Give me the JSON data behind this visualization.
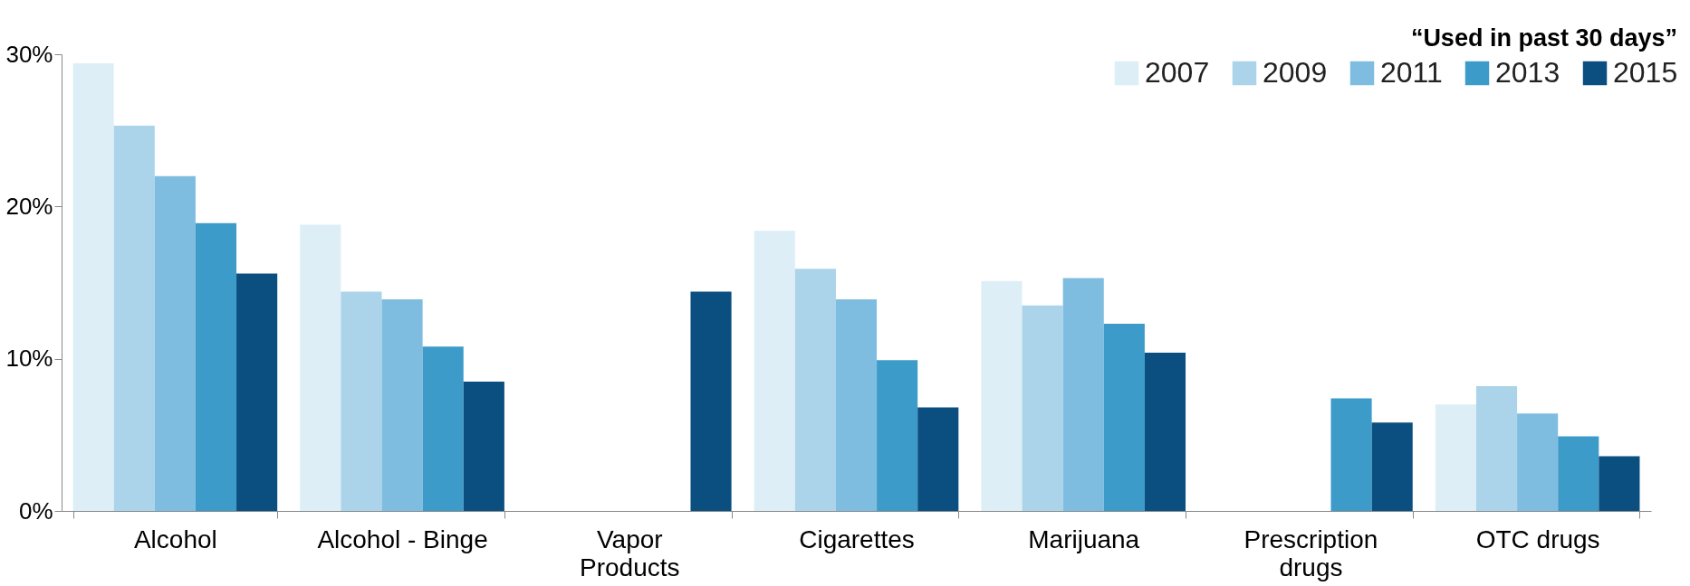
{
  "chart_data": {
    "type": "bar",
    "legend_title": "“Used in past 30 days”",
    "legend": "top right",
    "grid": false,
    "categories": [
      "Alcohol",
      "Alcohol - Binge",
      "Vapor Products",
      "Cigarettes",
      "Marijuana",
      "Prescription drugs",
      "OTC drugs"
    ],
    "series": [
      {
        "name": "2007",
        "color": "#ddeef7",
        "values": [
          29.4,
          18.8,
          null,
          18.4,
          15.1,
          null,
          7.0
        ]
      },
      {
        "name": "2009",
        "color": "#abd4ea",
        "values": [
          25.3,
          14.4,
          null,
          15.9,
          13.5,
          null,
          8.2
        ]
      },
      {
        "name": "2011",
        "color": "#7fbde0",
        "values": [
          22.0,
          13.9,
          null,
          13.9,
          15.3,
          null,
          6.4
        ]
      },
      {
        "name": "2013",
        "color": "#3d9bc9",
        "values": [
          18.9,
          10.8,
          null,
          9.9,
          12.3,
          7.4,
          4.9
        ]
      },
      {
        "name": "2015",
        "color": "#0a4f80",
        "values": [
          15.6,
          8.5,
          14.4,
          6.8,
          10.4,
          5.8,
          3.6
        ]
      }
    ],
    "ylim": [
      0,
      30
    ],
    "yticks": [
      {
        "value": 0,
        "label": "0%"
      },
      {
        "value": 10,
        "label": "10%"
      },
      {
        "value": 20,
        "label": "20%"
      },
      {
        "value": 30,
        "label": "30%"
      }
    ]
  }
}
